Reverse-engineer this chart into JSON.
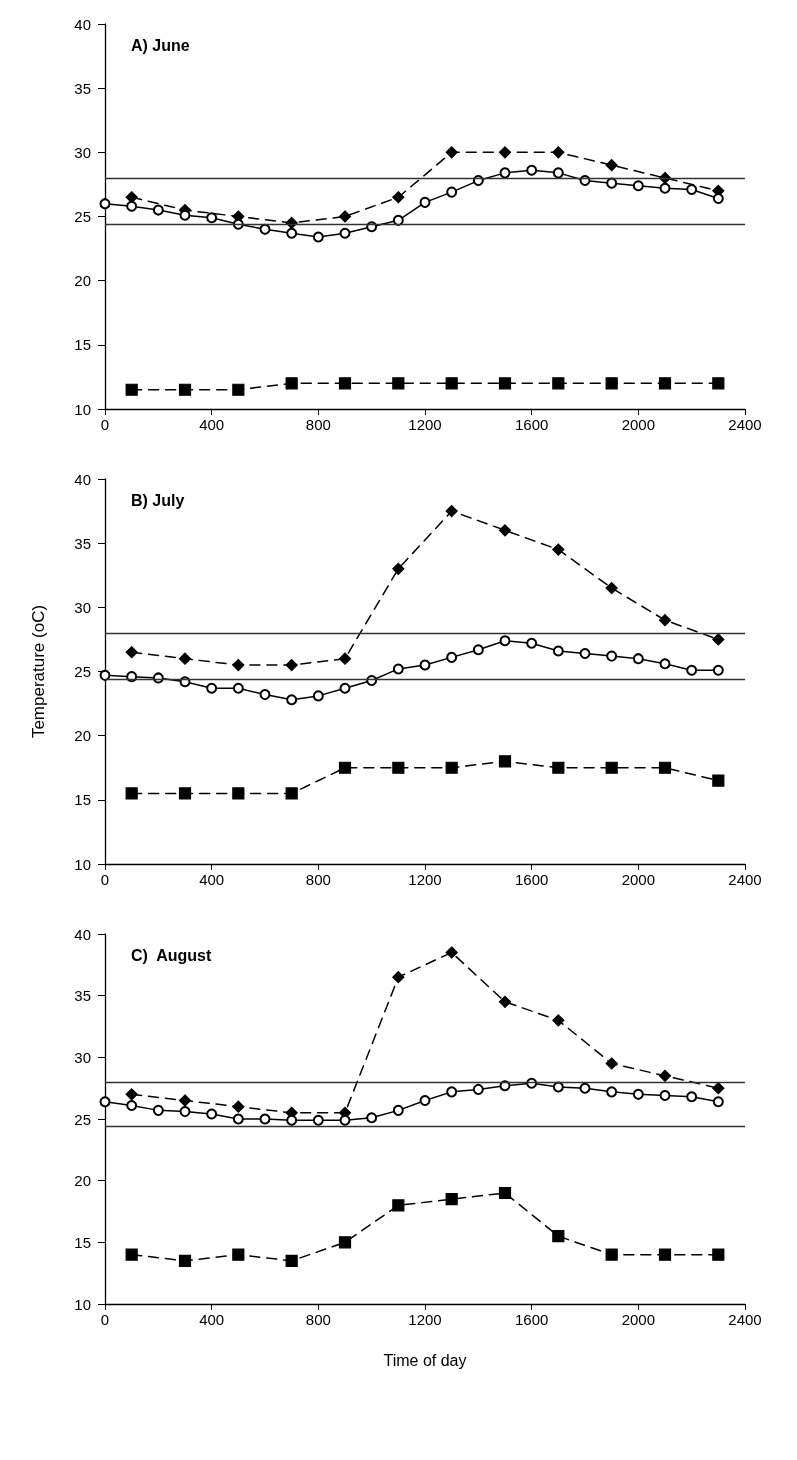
{
  "chart_data": [
    {
      "type": "line",
      "title": "A) June",
      "x": [
        0,
        100,
        200,
        300,
        400,
        500,
        600,
        700,
        800,
        900,
        1000,
        1100,
        1200,
        1300,
        1400,
        1500,
        1600,
        1700,
        1800,
        1900,
        2000,
        2100,
        2200,
        2300
      ],
      "xlim": [
        0,
        2400
      ],
      "xticks": [
        0,
        400,
        800,
        1200,
        1600,
        2000,
        2400
      ],
      "ylim": [
        10,
        40
      ],
      "yticks": [
        10,
        15,
        20,
        25,
        30,
        35,
        40
      ],
      "grid": false,
      "series": [
        {
          "color": "#000000",
          "marker": "diamond",
          "line_style": "dashed",
          "x": [
            100,
            300,
            500,
            700,
            900,
            1100,
            1300,
            1500,
            1700,
            1900,
            2100,
            2300
          ],
          "values": [
            26.5,
            25.5,
            25.0,
            24.5,
            25.0,
            26.5,
            30.0,
            30.0,
            30.0,
            29.0,
            28.0,
            27.0
          ]
        },
        {
          "color": "#000000",
          "marker": "circle",
          "line_style": "solid",
          "values": [
            26.0,
            25.8,
            25.5,
            25.1,
            24.9,
            24.4,
            24.0,
            23.7,
            23.4,
            23.7,
            24.2,
            24.7,
            26.1,
            26.9,
            27.8,
            28.4,
            28.6,
            28.4,
            27.8,
            27.6,
            27.4,
            27.2,
            27.1,
            26.4
          ]
        },
        {
          "color": "#000000",
          "marker": "square",
          "line_style": "dashed",
          "x": [
            100,
            300,
            500,
            700,
            900,
            1100,
            1300,
            1500,
            1700,
            1900,
            2100,
            2300
          ],
          "values": [
            11.5,
            11.5,
            11.5,
            12,
            12,
            12,
            12,
            12,
            12,
            12,
            12,
            12
          ]
        }
      ],
      "ref_lines": [
        {
          "axis": "y",
          "value": 28.0,
          "color": "#333333"
        },
        {
          "axis": "y",
          "value": 24.4,
          "color": "#333333"
        }
      ]
    },
    {
      "type": "line",
      "title": "B) July",
      "ylabel": "Temperature (oC)",
      "x": [
        0,
        100,
        200,
        300,
        400,
        500,
        600,
        700,
        800,
        900,
        1000,
        1100,
        1200,
        1300,
        1400,
        1500,
        1600,
        1700,
        1800,
        1900,
        2000,
        2100,
        2200,
        2300
      ],
      "xlim": [
        0,
        2400
      ],
      "xticks": [
        0,
        400,
        800,
        1200,
        1600,
        2000,
        2400
      ],
      "ylim": [
        10,
        40
      ],
      "yticks": [
        10,
        15,
        20,
        25,
        30,
        35,
        40
      ],
      "grid": false,
      "series": [
        {
          "color": "#000000",
          "marker": "diamond",
          "line_style": "dashed",
          "x": [
            100,
            300,
            500,
            700,
            900,
            1100,
            1300,
            1500,
            1700,
            1900,
            2100,
            2300
          ],
          "values": [
            26.5,
            26.0,
            25.5,
            25.5,
            26.0,
            33.0,
            37.5,
            36.0,
            34.5,
            31.5,
            29.0,
            27.5
          ]
        },
        {
          "color": "#000000",
          "marker": "circle",
          "line_style": "solid",
          "values": [
            24.7,
            24.6,
            24.5,
            24.2,
            23.7,
            23.7,
            23.2,
            22.8,
            23.1,
            23.7,
            24.3,
            25.2,
            25.5,
            26.1,
            26.7,
            27.4,
            27.2,
            26.6,
            26.4,
            26.2,
            26.0,
            25.6,
            25.1,
            25.1
          ]
        },
        {
          "color": "#000000",
          "marker": "square",
          "line_style": "dashed",
          "x": [
            100,
            300,
            500,
            700,
            900,
            1100,
            1300,
            1500,
            1700,
            1900,
            2100,
            2300
          ],
          "values": [
            15.5,
            15.5,
            15.5,
            15.5,
            17.5,
            17.5,
            17.5,
            18,
            17.5,
            17.5,
            17.5,
            16.5
          ]
        }
      ],
      "ref_lines": [
        {
          "axis": "y",
          "value": 28.0,
          "color": "#333333"
        },
        {
          "axis": "y",
          "value": 24.4,
          "color": "#333333"
        }
      ]
    },
    {
      "type": "line",
      "title": "C)  August",
      "xlabel": "Time of day",
      "x": [
        0,
        100,
        200,
        300,
        400,
        500,
        600,
        700,
        800,
        900,
        1000,
        1100,
        1200,
        1300,
        1400,
        1500,
        1600,
        1700,
        1800,
        1900,
        2000,
        2100,
        2200,
        2300
      ],
      "xlim": [
        0,
        2400
      ],
      "xticks": [
        0,
        400,
        800,
        1200,
        1600,
        2000,
        2400
      ],
      "ylim": [
        10,
        40
      ],
      "yticks": [
        10,
        15,
        20,
        25,
        30,
        35,
        40
      ],
      "grid": false,
      "series": [
        {
          "color": "#000000",
          "marker": "diamond",
          "line_style": "dashed",
          "x": [
            100,
            300,
            500,
            700,
            900,
            1100,
            1300,
            1500,
            1700,
            1900,
            2100,
            2300
          ],
          "values": [
            27.0,
            26.5,
            26.0,
            25.5,
            25.5,
            36.5,
            38.5,
            34.5,
            33.0,
            29.5,
            28.5,
            27.5
          ]
        },
        {
          "color": "#000000",
          "marker": "circle",
          "line_style": "solid",
          "values": [
            26.4,
            26.1,
            25.7,
            25.6,
            25.4,
            25.0,
            25.0,
            24.9,
            24.9,
            24.9,
            25.1,
            25.7,
            26.5,
            27.2,
            27.4,
            27.7,
            27.9,
            27.6,
            27.5,
            27.2,
            27.0,
            26.9,
            26.8,
            26.4
          ]
        },
        {
          "color": "#000000",
          "marker": "square",
          "line_style": "dashed",
          "x": [
            100,
            300,
            500,
            700,
            900,
            1100,
            1300,
            1500,
            1700,
            1900,
            2100,
            2300
          ],
          "values": [
            14,
            13.5,
            14,
            13.5,
            15,
            18,
            18.5,
            19,
            15.5,
            14,
            14,
            14
          ]
        }
      ],
      "ref_lines": [
        {
          "axis": "y",
          "value": 28.0,
          "color": "#333333"
        },
        {
          "axis": "y",
          "value": 24.4,
          "color": "#333333"
        }
      ]
    }
  ]
}
